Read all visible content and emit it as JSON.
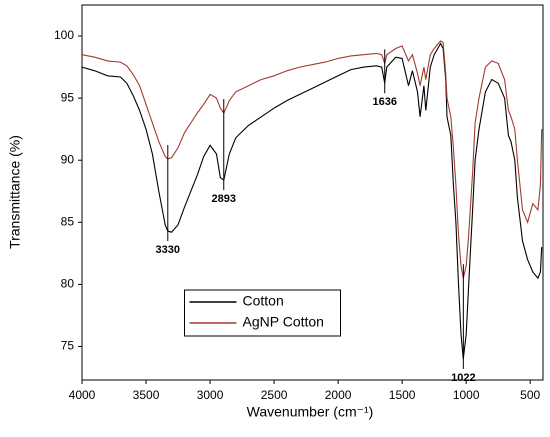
{
  "chart_data": {
    "type": "line",
    "xlabel": "Wavenumber (cm⁻¹)",
    "ylabel": "Transmittance (%)",
    "x": [
      4000,
      3900,
      3800,
      3700,
      3650,
      3600,
      3550,
      3500,
      3450,
      3400,
      3350,
      3330,
      3300,
      3250,
      3200,
      3150,
      3100,
      3050,
      3000,
      2950,
      2920,
      2893,
      2870,
      2850,
      2800,
      2700,
      2600,
      2500,
      2400,
      2300,
      2200,
      2100,
      2000,
      1900,
      1800,
      1700,
      1660,
      1636,
      1620,
      1550,
      1500,
      1450,
      1420,
      1380,
      1360,
      1330,
      1315,
      1280,
      1250,
      1200,
      1180,
      1160,
      1150,
      1120,
      1100,
      1080,
      1060,
      1040,
      1022,
      1000,
      980,
      950,
      930,
      900,
      850,
      800,
      750,
      700,
      670,
      650,
      620,
      600,
      560,
      520,
      480,
      440,
      420,
      410
    ],
    "series": [
      {
        "name": "Cotton",
        "color": "#000000",
        "values": [
          97.5,
          97.2,
          96.8,
          96.7,
          96.2,
          95.2,
          94.0,
          92.5,
          90.5,
          87.5,
          84.8,
          84.3,
          84.2,
          84.8,
          86.2,
          87.5,
          88.8,
          90.3,
          91.2,
          90.5,
          88.6,
          88.4,
          89.5,
          90.5,
          91.8,
          92.8,
          93.5,
          94.2,
          94.8,
          95.3,
          95.8,
          96.3,
          96.8,
          97.3,
          97.5,
          97.6,
          97.5,
          96.2,
          97.5,
          98.3,
          98.2,
          96.0,
          97.2,
          95.5,
          93.5,
          96.0,
          94.0,
          97.5,
          98.5,
          99.4,
          99.0,
          96.5,
          93.5,
          92.0,
          88.0,
          85.0,
          80.0,
          76.0,
          74.0,
          76.0,
          80.0,
          86.0,
          90.0,
          92.5,
          95.5,
          96.5,
          96.2,
          95.0,
          92.0,
          91.5,
          90.0,
          87.0,
          83.5,
          82.0,
          81.0,
          80.5,
          81.0,
          83.0
        ]
      },
      {
        "name": "AgNP Cotton",
        "color": "#a23a30",
        "values": [
          98.5,
          98.3,
          98.0,
          97.9,
          97.6,
          96.9,
          96.0,
          94.5,
          93.0,
          91.5,
          90.3,
          90.1,
          90.2,
          91.0,
          92.2,
          93.0,
          93.8,
          94.5,
          95.3,
          95.0,
          94.2,
          93.8,
          94.3,
          94.8,
          95.5,
          96.0,
          96.5,
          96.8,
          97.2,
          97.5,
          97.7,
          97.9,
          98.2,
          98.4,
          98.5,
          98.6,
          98.5,
          97.8,
          98.5,
          99.0,
          99.2,
          98.0,
          98.5,
          97.0,
          96.0,
          97.5,
          96.5,
          98.5,
          99.0,
          99.6,
          99.5,
          97.0,
          95.0,
          93.5,
          91.0,
          88.0,
          84.0,
          81.5,
          80.5,
          81.5,
          84.0,
          89.0,
          93.0,
          95.0,
          97.5,
          98.0,
          97.8,
          96.5,
          94.0,
          93.5,
          92.5,
          90.0,
          86.0,
          85.0,
          86.5,
          86.0,
          88.0,
          92.5
        ]
      }
    ],
    "annotations": [
      3330,
      2893,
      1636,
      1022
    ],
    "xlim": [
      4000,
      400
    ],
    "ylim": [
      72.3,
      102.5
    ],
    "xticks": [
      4000,
      3500,
      3000,
      2500,
      2000,
      1500,
      1000,
      500
    ],
    "yticks": [
      75,
      80,
      85,
      90,
      95,
      100
    ],
    "grid": false,
    "legend": "lower center"
  }
}
